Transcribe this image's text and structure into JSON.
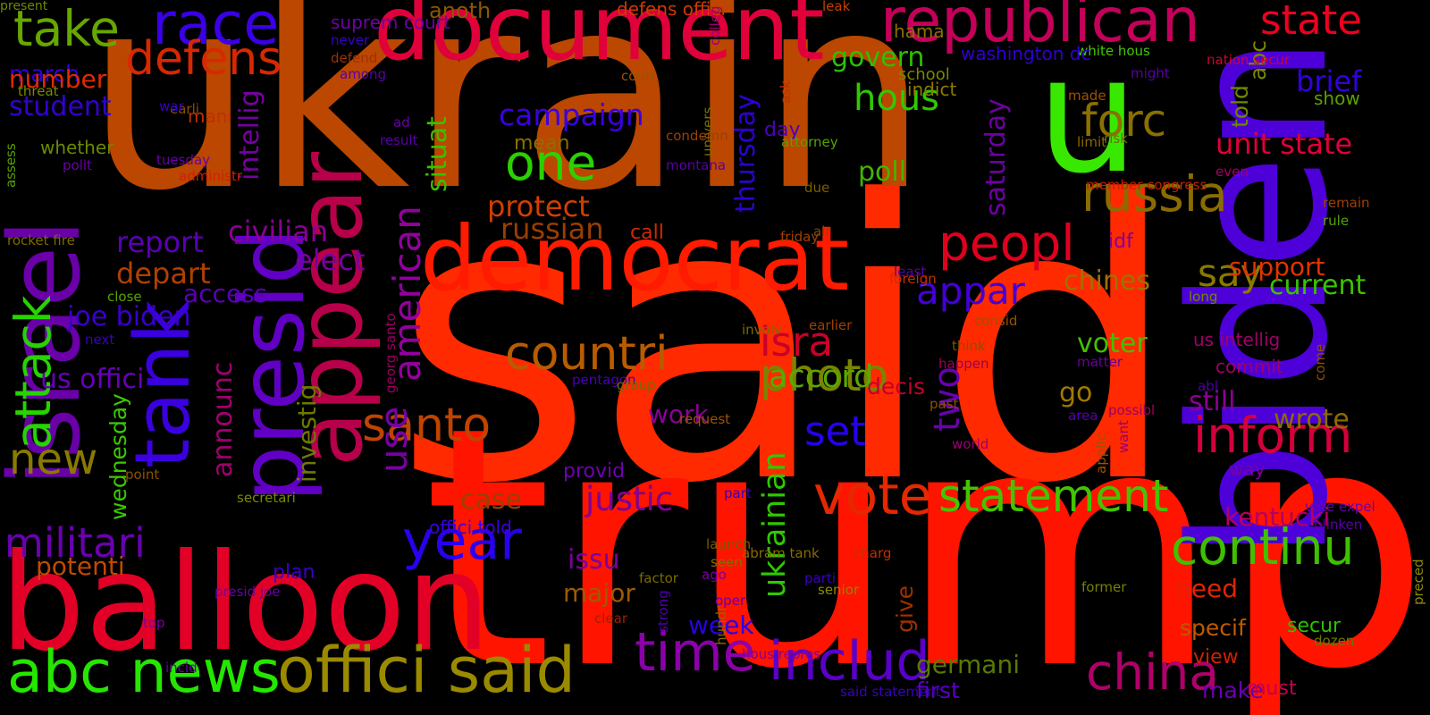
{
  "words": [
    {
      "text": "said",
      "color": "#ff2a00"
    },
    {
      "text": "trump",
      "color": "#ff1400"
    },
    {
      "text": "ukrain",
      "color": "#bb4700"
    },
    {
      "text": "biden",
      "color": "#4d00d8"
    },
    {
      "text": "u",
      "color": "#39e800"
    },
    {
      "text": "balloon",
      "color": "#e30026"
    },
    {
      "text": "document",
      "color": "#e0003a"
    },
    {
      "text": "democrat",
      "color": "#ff1b00"
    },
    {
      "text": "israel",
      "color": "#6a00a8"
    },
    {
      "text": "appear",
      "color": "#b70049"
    },
    {
      "text": "presid",
      "color": "#6100c4"
    },
    {
      "text": "tank",
      "color": "#3b00e0"
    },
    {
      "text": "republican",
      "color": "#c4005a"
    },
    {
      "text": "offici said",
      "color": "#9a8a00"
    },
    {
      "text": "abc news",
      "color": "#25e600"
    },
    {
      "text": "race",
      "color": "#3a00e8"
    },
    {
      "text": "take",
      "color": "#66a700"
    },
    {
      "text": "defens",
      "color": "#d82800"
    },
    {
      "text": "state",
      "color": "#ee0020"
    },
    {
      "text": "forc",
      "color": "#8a7000"
    },
    {
      "text": "russia",
      "color": "#8a6c00"
    },
    {
      "text": "peopl",
      "color": "#e0001e"
    },
    {
      "text": "inform",
      "color": "#d4003c"
    },
    {
      "text": "vote",
      "color": "#e52800"
    },
    {
      "text": "statement",
      "color": "#44c400"
    },
    {
      "text": "continu",
      "color": "#40c000"
    },
    {
      "text": "includ",
      "color": "#5a00c8"
    },
    {
      "text": "time",
      "color": "#8b00aa"
    },
    {
      "text": "china",
      "color": "#b0006a"
    },
    {
      "text": "year",
      "color": "#2a00f0"
    },
    {
      "text": "militari",
      "color": "#6a00b0"
    },
    {
      "text": "countri",
      "color": "#b85c00"
    },
    {
      "text": "santo",
      "color": "#c04400"
    },
    {
      "text": "photo",
      "color": "#7a8400"
    },
    {
      "text": "isra",
      "color": "#c8002a"
    },
    {
      "text": "one",
      "color": "#2ad200"
    },
    {
      "text": "campaign",
      "color": "#3c00e0"
    },
    {
      "text": "appar",
      "color": "#4400d8"
    },
    {
      "text": "new",
      "color": "#8a7a00"
    },
    {
      "text": "attack",
      "color": "#26d400"
    },
    {
      "text": "use",
      "color": "#7a00a4"
    },
    {
      "text": "american",
      "color": "#9400a0"
    },
    {
      "text": "hous",
      "color": "#30c800"
    },
    {
      "text": "say",
      "color": "#8a7a00"
    },
    {
      "text": "unit state",
      "color": "#e0003a"
    },
    {
      "text": "brief",
      "color": "#3300e0"
    },
    {
      "text": "told",
      "color": "#6e8800"
    },
    {
      "text": "abc",
      "color": "#7a8600"
    },
    {
      "text": "set",
      "color": "#2800ee"
    },
    {
      "text": "two",
      "color": "#6a00b0"
    },
    {
      "text": "accord",
      "color": "#5aa800"
    },
    {
      "text": "ukrainian",
      "color": "#30c800"
    },
    {
      "text": "justic",
      "color": "#800090"
    },
    {
      "text": "report",
      "color": "#5a00b4"
    },
    {
      "text": "depart",
      "color": "#b04000"
    },
    {
      "text": "civilian",
      "color": "#8a0096"
    },
    {
      "text": "elect",
      "color": "#7a00a0"
    },
    {
      "text": "russian",
      "color": "#9a3e00"
    },
    {
      "text": "protect",
      "color": "#d23e00"
    },
    {
      "text": "poll",
      "color": "#44b400"
    },
    {
      "text": "govern",
      "color": "#2ec000"
    },
    {
      "text": "saturday",
      "color": "#6e00a0"
    },
    {
      "text": "thursday",
      "color": "#2e00d4"
    },
    {
      "text": "situat",
      "color": "#3ac000"
    },
    {
      "text": "intellig",
      "color": "#7800a2"
    },
    {
      "text": "joe biden",
      "color": "#3a00cc"
    },
    {
      "text": "us offici",
      "color": "#6800b8"
    },
    {
      "text": "student",
      "color": "#3400d2"
    },
    {
      "text": "march",
      "color": "#3300dc"
    },
    {
      "text": "number",
      "color": "#e02a00"
    },
    {
      "text": "potenti",
      "color": "#c04a00"
    },
    {
      "text": "announc",
      "color": "#a20070"
    },
    {
      "text": "wednesday",
      "color": "#3ac800"
    },
    {
      "text": "investig",
      "color": "#6e7a00"
    },
    {
      "text": "access",
      "color": "#5a00b8"
    },
    {
      "text": "case",
      "color": "#9a4000"
    },
    {
      "text": "work",
      "color": "#8a0098"
    },
    {
      "text": "issu",
      "color": "#7a00a0"
    },
    {
      "text": "major",
      "color": "#a05a00"
    },
    {
      "text": "week",
      "color": "#2a00e4"
    },
    {
      "text": "provid",
      "color": "#7000b0"
    },
    {
      "text": "plan",
      "color": "#3a00c4"
    },
    {
      "text": "offici told",
      "color": "#3c00e0"
    },
    {
      "text": "chines",
      "color": "#a07000"
    },
    {
      "text": "voter",
      "color": "#44c000"
    },
    {
      "text": "go",
      "color": "#a07a00"
    },
    {
      "text": "still",
      "color": "#8c0094"
    },
    {
      "text": "wrote",
      "color": "#8c6c00"
    },
    {
      "text": "current",
      "color": "#3ac400"
    },
    {
      "text": "support",
      "color": "#e03400"
    },
    {
      "text": "idf",
      "color": "#8000a0"
    },
    {
      "text": "decis",
      "color": "#c4002e"
    },
    {
      "text": "day",
      "color": "#5000c0"
    },
    {
      "text": "mean",
      "color": "#8a7000"
    },
    {
      "text": "call",
      "color": "#d02a00"
    },
    {
      "text": "anoth",
      "color": "#8a5800"
    },
    {
      "text": "defens offici",
      "color": "#d03800"
    },
    {
      "text": "suprem court",
      "color": "#7000a8"
    },
    {
      "text": "leak",
      "color": "#c44000"
    },
    {
      "text": "white hous",
      "color": "#44c800"
    },
    {
      "text": "washington dc",
      "color": "#3000d0"
    },
    {
      "text": "school",
      "color": "#7e8600"
    },
    {
      "text": "indict",
      "color": "#8c7a00"
    },
    {
      "text": "hama",
      "color": "#8a6e00"
    },
    {
      "text": "way",
      "color": "#7a00a0"
    },
    {
      "text": "kentucki",
      "color": "#b40060"
    },
    {
      "text": "need",
      "color": "#e02400"
    },
    {
      "text": "specif",
      "color": "#c05a00"
    },
    {
      "text": "view",
      "color": "#d02000"
    },
    {
      "text": "secur",
      "color": "#2ec000"
    },
    {
      "text": "germani",
      "color": "#5a7a00"
    },
    {
      "text": "first",
      "color": "#5a00c4"
    },
    {
      "text": "make",
      "color": "#6a00b0"
    },
    {
      "text": "must",
      "color": "#c40050"
    },
    {
      "text": "us intellig",
      "color": "#a0006a"
    },
    {
      "text": "commit",
      "color": "#a0006a"
    },
    {
      "text": "made",
      "color": "#a05000"
    },
    {
      "text": "member congress",
      "color": "#c42000"
    },
    {
      "text": "nation secur",
      "color": "#d40030"
    },
    {
      "text": "show",
      "color": "#5aa000"
    },
    {
      "text": "even",
      "color": "#a00068"
    },
    {
      "text": "remain",
      "color": "#a04000"
    },
    {
      "text": "rule",
      "color": "#5aa000"
    },
    {
      "text": "long",
      "color": "#6a8a00"
    },
    {
      "text": "come",
      "color": "#8a5000"
    },
    {
      "text": "abl",
      "color": "#4a00a0"
    },
    {
      "text": "vote expel",
      "color": "#6a00b0"
    },
    {
      "text": "blinken",
      "color": "#5a00a8"
    },
    {
      "text": "dozen",
      "color": "#6a7a00"
    },
    {
      "text": "preced",
      "color": "#8a8a00"
    },
    {
      "text": "charg",
      "color": "#c03000"
    },
    {
      "text": "senior",
      "color": "#8a8a00"
    },
    {
      "text": "former",
      "color": "#7a8000"
    },
    {
      "text": "parti",
      "color": "#3a00c0"
    },
    {
      "text": "ago",
      "color": "#7a00a0"
    },
    {
      "text": "abram tank",
      "color": "#8a6a00"
    },
    {
      "text": "seen",
      "color": "#8a6a00"
    },
    {
      "text": "launch",
      "color": "#7a5a00"
    },
    {
      "text": "oper",
      "color": "#6a00a8"
    },
    {
      "text": "factor",
      "color": "#7a6a00"
    },
    {
      "text": "give",
      "color": "#a03000"
    },
    {
      "text": "hundr",
      "color": "#8a6a00"
    },
    {
      "text": "hous repres",
      "color": "#8a0090"
    },
    {
      "text": "clear",
      "color": "#a02000"
    },
    {
      "text": "strong",
      "color": "#5000b0"
    },
    {
      "text": "part",
      "color": "#3a00c0"
    },
    {
      "text": "request",
      "color": "#a05000"
    },
    {
      "text": "world",
      "color": "#9a0070"
    },
    {
      "text": "applic",
      "color": "#a05000"
    },
    {
      "text": "want",
      "color": "#9a0070"
    },
    {
      "text": "area",
      "color": "#5a00b0"
    },
    {
      "text": "possibl",
      "color": "#a00060"
    },
    {
      "text": "matter",
      "color": "#6a0098"
    },
    {
      "text": "happen",
      "color": "#a00050"
    },
    {
      "text": "think",
      "color": "#8a5000"
    },
    {
      "text": "consid",
      "color": "#a05000"
    },
    {
      "text": "earlier",
      "color": "#a04000"
    },
    {
      "text": "involv",
      "color": "#7a6a00"
    },
    {
      "text": "past",
      "color": "#8a5000"
    },
    {
      "text": "georg santo",
      "color": "#9a0060"
    },
    {
      "text": "pentagon",
      "color": "#4a00b0"
    },
    {
      "text": "group",
      "color": "#6a7000"
    },
    {
      "text": "least",
      "color": "#5a00a8"
    },
    {
      "text": "foreign",
      "color": "#c03000"
    },
    {
      "text": "air",
      "color": "#7a5000"
    },
    {
      "text": "friday",
      "color": "#a04000"
    },
    {
      "text": "due",
      "color": "#7a6000"
    },
    {
      "text": "limit",
      "color": "#8a6a00"
    },
    {
      "text": "risk",
      "color": "#6a7000"
    },
    {
      "text": "montana",
      "color": "#5a00a8"
    },
    {
      "text": "attorney",
      "color": "#5aa000"
    },
    {
      "text": "ask",
      "color": "#c03000"
    },
    {
      "text": "univers",
      "color": "#7a7000"
    },
    {
      "text": "condemn",
      "color": "#9a4000"
    },
    {
      "text": "colleg",
      "color": "#9a0070"
    },
    {
      "text": "court",
      "color": "#a05000"
    },
    {
      "text": "might",
      "color": "#5a00a8"
    },
    {
      "text": "ad",
      "color": "#6a00a8"
    },
    {
      "text": "result",
      "color": "#5a00a8"
    },
    {
      "text": "tuesday",
      "color": "#6a00a8"
    },
    {
      "text": "administr",
      "color": "#d02000"
    },
    {
      "text": "mani",
      "color": "#c03000"
    },
    {
      "text": "earli",
      "color": "#8a5000"
    },
    {
      "text": "war",
      "color": "#3a00c0"
    },
    {
      "text": "whether",
      "color": "#6a8a00"
    },
    {
      "text": "polit",
      "color": "#6a00a8"
    },
    {
      "text": "threat",
      "color": "#7a8a00"
    },
    {
      "text": "defend",
      "color": "#a03000"
    },
    {
      "text": "among",
      "color": "#5a00a8"
    },
    {
      "text": "never",
      "color": "#3a00c0"
    },
    {
      "text": "assess",
      "color": "#5aa000"
    },
    {
      "text": "rocket fire",
      "color": "#7a6a00"
    },
    {
      "text": "close",
      "color": "#5aa000"
    },
    {
      "text": "next",
      "color": "#3a00c0"
    },
    {
      "text": "point",
      "color": "#8a5000"
    },
    {
      "text": "secretari",
      "color": "#7a8a00"
    },
    {
      "text": "presid joe",
      "color": "#6a00a8"
    },
    {
      "text": "top",
      "color": "#7a00a0"
    },
    {
      "text": "incid",
      "color": "#6a00a8"
    },
    {
      "text": "said statement",
      "color": "#3a00c0"
    },
    {
      "text": "present",
      "color": "#6a8a00"
    }
  ]
}
